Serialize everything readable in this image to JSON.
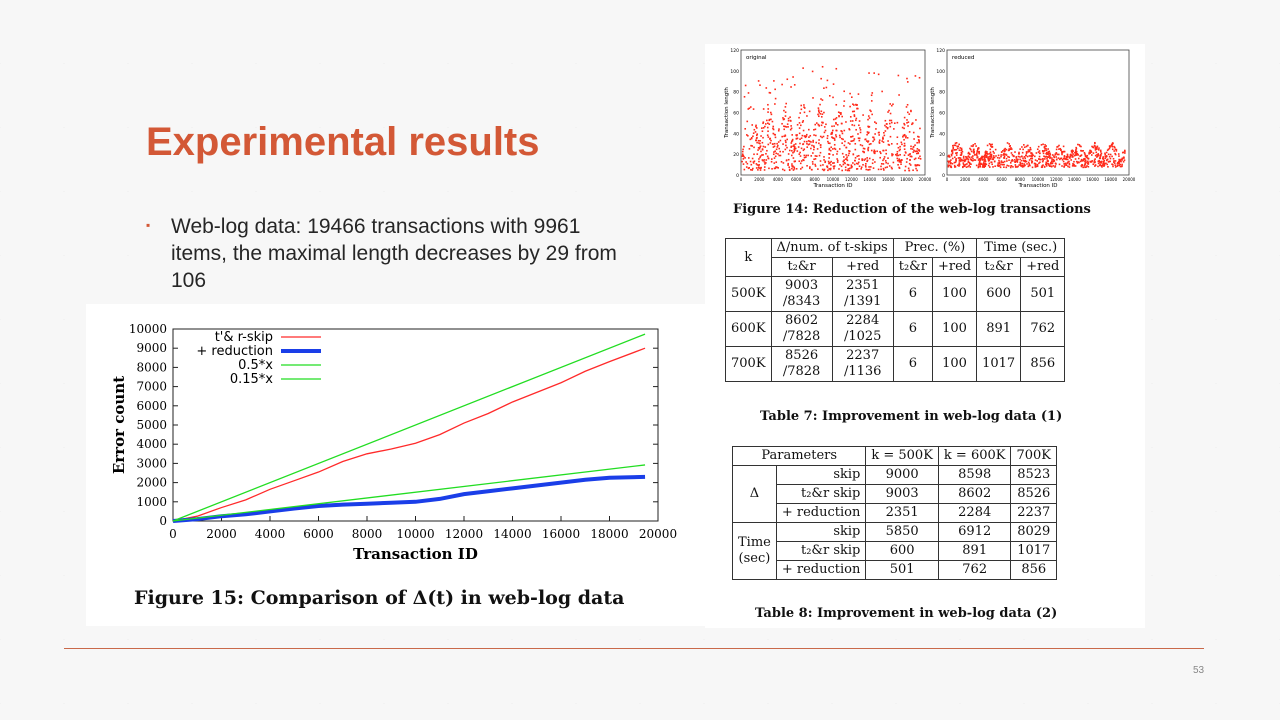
{
  "slide": {
    "title": "Experimental results",
    "bullet": "Web-log data: 19466 transactions with 9961 items, the maximal length decreases by 29 from 106",
    "page_number": "53"
  },
  "figure15": {
    "caption": "Figure 15: Comparison of Δ(t) in web-log data"
  },
  "figure14": {
    "caption": "Figure 14: Reduction of the web-log transactions",
    "left_legend": "original",
    "right_legend": "reduced",
    "ylabel": "Transaction length",
    "xlabel": "Transaction ID"
  },
  "table7": {
    "caption": "Table 7: Improvement in web-log data (1)",
    "header1": [
      "k",
      "Δ/num. of t-skips",
      "Prec. (%)",
      "Time (sec.)"
    ],
    "header2": [
      "t₂&r",
      "+red",
      "t₂&r",
      "+red",
      "t₂&r",
      "+red"
    ],
    "rows": [
      [
        "500K",
        "9003\n/8343",
        "2351\n/1391",
        "6",
        "100",
        "600",
        "501"
      ],
      [
        "600K",
        "8602\n/7828",
        "2284\n/1025",
        "6",
        "100",
        "891",
        "762"
      ],
      [
        "700K",
        "8526\n/7828",
        "2237\n/1136",
        "6",
        "100",
        "1017",
        "856"
      ]
    ]
  },
  "table8": {
    "caption": "Table 8: Improvement in web-log data (2)",
    "header": [
      "Parameters",
      "k = 500K",
      "k = 600K",
      "700K"
    ],
    "delta_label": "Δ",
    "time_label": "Time\n(sec)",
    "methods": [
      "skip",
      "t₂&r skip",
      "+ reduction"
    ],
    "delta_rows": [
      [
        "9000",
        "8598",
        "8523"
      ],
      [
        "9003",
        "8602",
        "8526"
      ],
      [
        "2351",
        "2284",
        "2237"
      ]
    ],
    "time_rows": [
      [
        "5850",
        "6912",
        "8029"
      ],
      [
        "600",
        "891",
        "1017"
      ],
      [
        "501",
        "762",
        "856"
      ]
    ]
  },
  "chart_data": [
    {
      "type": "line",
      "title": "",
      "xlabel": "Transaction ID",
      "ylabel": "Error count",
      "xlim": [
        0,
        20000
      ],
      "ylim": [
        0,
        10000
      ],
      "x_ticks": [
        "0",
        "2000",
        "4000",
        "6000",
        "8000",
        "10000",
        "12000",
        "14000",
        "16000",
        "18000",
        "20000"
      ],
      "y_ticks": [
        "0",
        "1000",
        "2000",
        "3000",
        "4000",
        "5000",
        "6000",
        "7000",
        "8000",
        "9000",
        "10000"
      ],
      "legend_position": "top-left",
      "series": [
        {
          "name": "t'& r-skip",
          "color": "#ff2a2a",
          "x": [
            0,
            1000,
            2000,
            3000,
            4000,
            5000,
            6000,
            7000,
            8000,
            9000,
            10000,
            11000,
            12000,
            13000,
            14000,
            15000,
            16000,
            17000,
            18000,
            19466
          ],
          "y": [
            0,
            250,
            700,
            1100,
            1650,
            2100,
            2550,
            3100,
            3500,
            3750,
            4050,
            4500,
            5100,
            5600,
            6200,
            6700,
            7200,
            7800,
            8300,
            9000
          ]
        },
        {
          "name": "+ reduction",
          "color": "#1a3ee8",
          "x": [
            0,
            1000,
            2000,
            3000,
            4000,
            5000,
            6000,
            7000,
            8000,
            9000,
            10000,
            11000,
            12000,
            13000,
            14000,
            15000,
            16000,
            17000,
            18000,
            19466
          ],
          "y": [
            0,
            100,
            250,
            350,
            500,
            650,
            780,
            850,
            900,
            950,
            1000,
            1150,
            1400,
            1550,
            1700,
            1850,
            2000,
            2150,
            2250,
            2300
          ]
        },
        {
          "name": "0.5*x",
          "color": "#22dd22",
          "x": [
            0,
            19466
          ],
          "y": [
            0,
            9733
          ]
        },
        {
          "name": "0.15*x",
          "color": "#22dd22",
          "x": [
            0,
            19466
          ],
          "y": [
            0,
            2920
          ]
        }
      ]
    },
    {
      "type": "scatter",
      "title": "",
      "legend": "original",
      "xlabel": "Transaction ID",
      "ylabel": "Transaction length",
      "xlim": [
        0,
        20000
      ],
      "ylim": [
        0,
        120
      ],
      "x_ticks": [
        "0",
        "2000",
        "4000",
        "6000",
        "8000",
        "10000",
        "12000",
        "14000",
        "16000",
        "18000",
        "20000"
      ],
      "y_ticks": [
        "0",
        "20",
        "40",
        "60",
        "80",
        "100",
        "120"
      ],
      "color": "#ff2a1a"
    },
    {
      "type": "scatter",
      "title": "",
      "legend": "reduced",
      "xlabel": "Transaction ID",
      "ylabel": "Transaction length",
      "xlim": [
        0,
        20000
      ],
      "ylim": [
        0,
        120
      ],
      "x_ticks": [
        "0",
        "2000",
        "4000",
        "6000",
        "8000",
        "10000",
        "12000",
        "14000",
        "16000",
        "18000",
        "20000"
      ],
      "y_ticks": [
        "0",
        "20",
        "40",
        "60",
        "80",
        "100",
        "120"
      ],
      "color": "#ff2a1a"
    }
  ]
}
